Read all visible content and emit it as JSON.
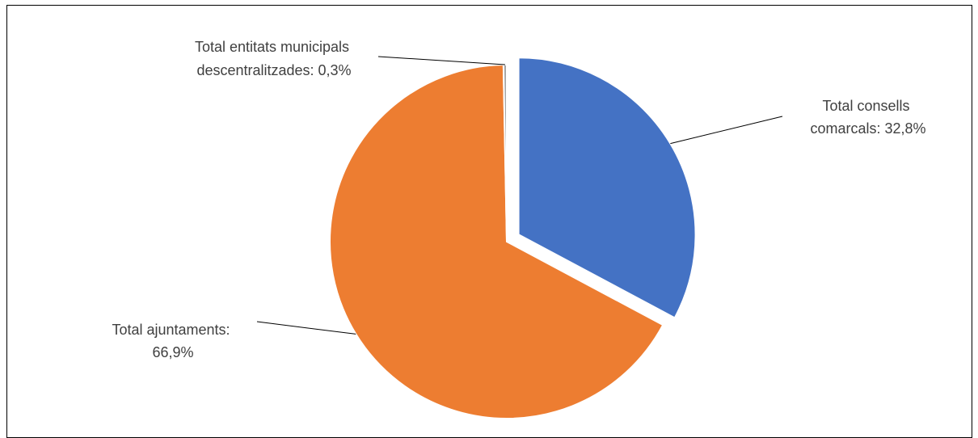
{
  "chart_data": {
    "type": "pie",
    "title": "",
    "slices": [
      {
        "label": "Total consells comarcals",
        "value": 32.8,
        "display": "32,8%",
        "color": "#4472C4",
        "exploded": true
      },
      {
        "label": "Total ajuntaments",
        "value": 66.9,
        "display": "66,9%",
        "color": "#ED7D31",
        "exploded": false
      },
      {
        "label": "Total entitats municipals descentralitzades",
        "value": 0.3,
        "display": "0,3%",
        "color": "#A5A5A5",
        "exploded": false
      }
    ],
    "data_labels": {
      "consells": [
        "Total consells",
        "comarcals: 32,8%"
      ],
      "ajuntaments": [
        "Total ajuntaments:",
        "66,9%"
      ],
      "entitats": [
        "Total entitats municipals",
        "descentralitzades: 0,3%"
      ]
    }
  }
}
